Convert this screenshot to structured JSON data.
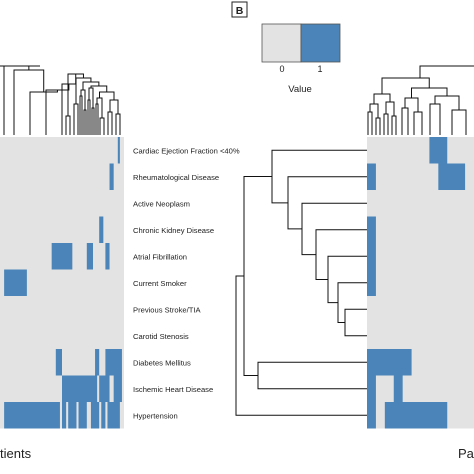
{
  "panel_label": "B",
  "legend": {
    "title": "Value",
    "entries": [
      {
        "label": "0",
        "color": "#e3e3e3"
      },
      {
        "label": "1",
        "color": "#4a84b8"
      }
    ]
  },
  "left_axis_title": "tients",
  "right_axis_title": "Pa",
  "chart_data": {
    "type": "heatmap",
    "value_colors": {
      "0": "#e3e3e3",
      "1": "#4a84b8"
    },
    "rows": [
      "Cardiac Ejection Fraction <40%",
      "Rheumatological Disease",
      "Active Neoplasm",
      "Chronic Kidney Disease",
      "Atrial Fibrillation",
      "Current Smoker",
      "Previous Stroke/TIA",
      "Carotid Stenosis",
      "Diabetes Mellitus",
      "Ischemic Heart Disease",
      "Hypertension"
    ],
    "left_panel_columns": 60,
    "left_panel_value1_column_ranges": [
      [
        [
          57,
          57
        ]
      ],
      [
        [
          53,
          54
        ]
      ],
      [],
      [
        [
          48,
          49
        ]
      ],
      [
        [
          25,
          34
        ],
        [
          42,
          44
        ],
        [
          51,
          52
        ]
      ],
      [
        [
          2,
          12
        ]
      ],
      [],
      [],
      [
        [
          27,
          29
        ],
        [
          46,
          47
        ],
        [
          51,
          58
        ]
      ],
      [
        [
          30,
          46
        ],
        [
          48,
          52
        ],
        [
          55,
          58
        ]
      ],
      [
        [
          2,
          28
        ],
        [
          30,
          31
        ],
        [
          33,
          36
        ],
        [
          38,
          41
        ],
        [
          44,
          47
        ],
        [
          49,
          50
        ],
        [
          52,
          57
        ]
      ]
    ],
    "right_panel_columns": 12,
    "right_panel_value1_column_ranges": [
      [
        [
          7,
          8
        ]
      ],
      [
        [
          0,
          0
        ],
        [
          8,
          10
        ]
      ],
      [],
      [
        [
          0,
          0
        ]
      ],
      [
        [
          0,
          0
        ]
      ],
      [
        [
          0,
          0
        ]
      ],
      [],
      [],
      [
        [
          0,
          4
        ]
      ],
      [
        [
          0,
          0
        ],
        [
          3,
          3
        ]
      ],
      [
        [
          0,
          0
        ],
        [
          2,
          8
        ]
      ]
    ]
  }
}
